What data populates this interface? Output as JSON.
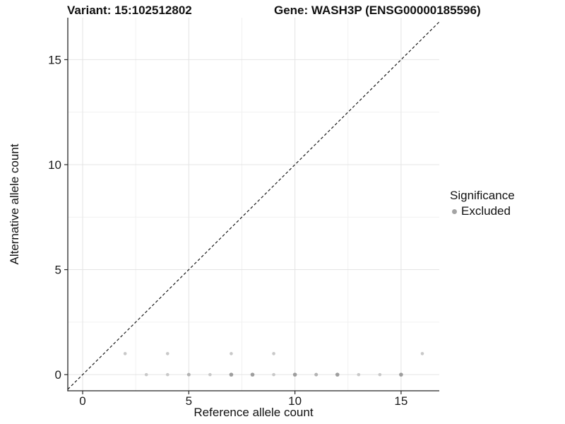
{
  "chart_data": {
    "type": "scatter",
    "titles": {
      "left": "Variant: 15:102512802",
      "right": "Gene: WASH3P (ENSG00000185596)"
    },
    "xlabel": "Reference allele count",
    "ylabel": "Alternative allele count",
    "xlim": [
      -0.7,
      16.8
    ],
    "ylim": [
      -0.77,
      17.0
    ],
    "x_ticks": [
      0,
      5,
      10,
      15
    ],
    "y_ticks": [
      0,
      5,
      10,
      15
    ],
    "x_minor_ticks": [
      2.5,
      7.5,
      12.5
    ],
    "y_minor_ticks": [
      2.5,
      7.5,
      12.5
    ],
    "grid": {
      "major": true,
      "minor": true,
      "major_color": "#e4e4e4",
      "minor_color": "#f1f1f1"
    },
    "identity_line": {
      "style": "dashed",
      "slope": 1,
      "intercept": 0,
      "color": "#1a1a1a",
      "from": -0.7,
      "to": 16.8
    },
    "legend": {
      "title": "Significance",
      "position": "right",
      "items": [
        {
          "label": "Excluded",
          "color": "#a4a4a4",
          "shape": "circle"
        }
      ]
    },
    "point_shade_colors": {
      "light": "#c8c8c8",
      "medium": "#b2b2b2",
      "dark": "#9d9d9d"
    },
    "series": [
      {
        "name": "Excluded",
        "points": [
          {
            "x": 2,
            "y": 1,
            "shade": "light"
          },
          {
            "x": 3,
            "y": 0,
            "shade": "light"
          },
          {
            "x": 4,
            "y": 0,
            "shade": "light"
          },
          {
            "x": 4,
            "y": 1,
            "shade": "light"
          },
          {
            "x": 5,
            "y": 0,
            "shade": "medium"
          },
          {
            "x": 6,
            "y": 0,
            "shade": "light"
          },
          {
            "x": 7,
            "y": 0,
            "shade": "dark"
          },
          {
            "x": 7,
            "y": 1,
            "shade": "light"
          },
          {
            "x": 8,
            "y": 0,
            "shade": "dark"
          },
          {
            "x": 9,
            "y": 0,
            "shade": "light"
          },
          {
            "x": 9,
            "y": 1,
            "shade": "light"
          },
          {
            "x": 10,
            "y": 0,
            "shade": "dark"
          },
          {
            "x": 11,
            "y": 0,
            "shade": "medium"
          },
          {
            "x": 12,
            "y": 0,
            "shade": "dark"
          },
          {
            "x": 13,
            "y": 0,
            "shade": "light"
          },
          {
            "x": 14,
            "y": 0,
            "shade": "light"
          },
          {
            "x": 15,
            "y": 0,
            "shade": "dark"
          },
          {
            "x": 16,
            "y": 1,
            "shade": "light"
          }
        ]
      }
    ],
    "axis": {
      "line_color": "#262626",
      "tick_color": "#262626",
      "tick_label_color": "#1a1a1a",
      "tick_label_size": 17
    }
  }
}
